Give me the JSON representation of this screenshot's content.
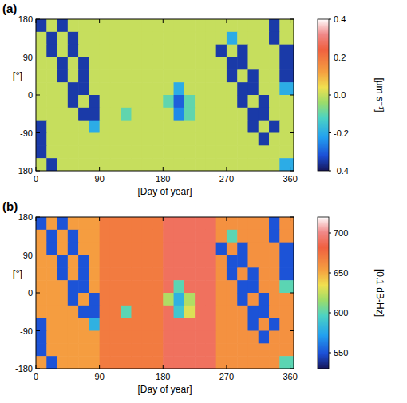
{
  "chart_data": [
    {
      "type": "heatmap",
      "title": "(a)",
      "x_label": "[Day of year]",
      "y_label": "[°]",
      "xlim": [
        0,
        365
      ],
      "ylim": [
        -180,
        180
      ],
      "xticks": [
        0,
        90,
        180,
        270,
        360
      ],
      "yticks": [
        -180,
        -90,
        0,
        90,
        180
      ],
      "x_edges": [
        0,
        15,
        30,
        45,
        60,
        75,
        90,
        105,
        120,
        135,
        150,
        165,
        180,
        195,
        210,
        225,
        240,
        255,
        270,
        285,
        300,
        315,
        330,
        345,
        365
      ],
      "y_edges": [
        180,
        150,
        120,
        90,
        60,
        30,
        0,
        -30,
        -60,
        -90,
        -120,
        -150,
        -180
      ],
      "cells": [
        [
          -0.35,
          0,
          -0.35,
          0,
          0,
          0,
          0,
          0,
          0,
          0,
          0,
          0,
          0,
          0,
          0,
          0,
          0,
          0,
          0,
          0,
          0,
          0,
          -0.35,
          0
        ],
        [
          0,
          -0.35,
          0,
          -0.35,
          0,
          0,
          0,
          0,
          0,
          0,
          0,
          0,
          0,
          0,
          0,
          0,
          0,
          0,
          -0.2,
          0,
          0,
          0,
          -0.35,
          0
        ],
        [
          0,
          -0.35,
          0,
          -0.35,
          0,
          0,
          0,
          0,
          0,
          0,
          0,
          0,
          0,
          0,
          0,
          0,
          0,
          -0.35,
          0,
          -0.35,
          0,
          0,
          0,
          -0.35
        ],
        [
          0,
          0,
          -0.35,
          0,
          -0.35,
          0,
          0,
          0,
          0,
          0,
          0,
          0,
          0,
          0,
          0,
          0,
          0,
          0,
          -0.35,
          -0.35,
          0,
          0,
          0,
          -0.35
        ],
        [
          0,
          0,
          -0.35,
          0,
          -0.35,
          0,
          0,
          0,
          0,
          0,
          0,
          0,
          0,
          0,
          0,
          0,
          0,
          0,
          -0.35,
          0,
          -0.35,
          0,
          0,
          -0.35
        ],
        [
          0,
          0,
          0,
          -0.35,
          -0.35,
          0,
          0,
          0,
          0,
          0,
          0,
          0,
          0,
          -0.2,
          0,
          0,
          0,
          0,
          0,
          -0.35,
          -0.35,
          0,
          0,
          -0.2
        ],
        [
          0,
          0,
          0,
          -0.35,
          0,
          -0.35,
          0,
          0,
          0,
          0,
          0,
          0,
          -0.1,
          -0.3,
          -0.1,
          0,
          0,
          0,
          0,
          -0.35,
          0,
          -0.35,
          0,
          0
        ],
        [
          0,
          0,
          0,
          0,
          -0.35,
          -0.35,
          0,
          0,
          -0.1,
          0,
          0,
          0,
          0,
          -0.25,
          -0.1,
          0,
          0,
          0,
          0,
          0,
          -0.35,
          -0.35,
          0,
          0
        ],
        [
          -0.35,
          0,
          0,
          0,
          0,
          -0.2,
          0,
          0,
          0,
          0,
          0,
          0,
          0,
          0,
          0,
          0,
          0,
          0,
          0,
          0,
          -0.35,
          0,
          -0.35,
          0
        ],
        [
          -0.35,
          0,
          0,
          0,
          0,
          0,
          0,
          0,
          0,
          0,
          0,
          0,
          0,
          0,
          0,
          0,
          0,
          0,
          0,
          0,
          0,
          -0.35,
          0,
          0
        ],
        [
          -0.35,
          0,
          0,
          0,
          0,
          0,
          0,
          0,
          0,
          0,
          0,
          0,
          0,
          0,
          0,
          0,
          0,
          0,
          0,
          0,
          0,
          0,
          0,
          0
        ],
        [
          0,
          -0.35,
          0,
          0,
          0,
          0,
          0,
          0,
          0,
          0,
          0,
          0,
          0,
          0,
          0,
          0,
          0,
          0,
          0,
          0,
          0,
          0,
          0,
          -0.2
        ]
      ],
      "colorbar_label": "[µm s⁻¹]",
      "colorbar_range": [
        -0.4,
        0.4
      ],
      "colorbar_ticks": [
        -0.4,
        -0.2,
        {
          "value": 0,
          "label": "0.0"
        },
        0.2,
        0.4
      ]
    },
    {
      "type": "heatmap",
      "title": "(b)",
      "x_label": "[Day of year]",
      "y_label": "[°]",
      "xlim": [
        0,
        365
      ],
      "ylim": [
        -180,
        180
      ],
      "xticks": [
        0,
        90,
        180,
        270,
        360
      ],
      "yticks": [
        -180,
        -90,
        0,
        90,
        180
      ],
      "x_edges": [
        0,
        15,
        30,
        45,
        60,
        75,
        90,
        105,
        120,
        135,
        150,
        165,
        180,
        195,
        210,
        225,
        240,
        255,
        270,
        285,
        300,
        315,
        330,
        345,
        365
      ],
      "y_edges": [
        180,
        150,
        120,
        90,
        60,
        30,
        0,
        -30,
        -60,
        -90,
        -120,
        -150,
        -180
      ],
      "cells": [
        [
          550,
          655,
          550,
          655,
          655,
          655,
          670,
          670,
          670,
          670,
          670,
          670,
          690,
          690,
          690,
          690,
          690,
          660,
          660,
          660,
          660,
          660,
          550,
          660
        ],
        [
          655,
          550,
          655,
          550,
          655,
          655,
          670,
          670,
          670,
          670,
          670,
          670,
          690,
          690,
          690,
          690,
          690,
          660,
          600,
          660,
          660,
          660,
          550,
          660
        ],
        [
          655,
          550,
          655,
          550,
          655,
          655,
          670,
          670,
          670,
          670,
          670,
          670,
          690,
          690,
          690,
          690,
          690,
          550,
          660,
          550,
          660,
          660,
          660,
          550
        ],
        [
          655,
          655,
          550,
          655,
          550,
          655,
          670,
          670,
          670,
          670,
          670,
          670,
          690,
          690,
          690,
          690,
          690,
          660,
          550,
          550,
          660,
          660,
          660,
          550
        ],
        [
          655,
          655,
          550,
          655,
          550,
          655,
          670,
          670,
          670,
          670,
          670,
          670,
          690,
          690,
          690,
          690,
          690,
          660,
          550,
          660,
          550,
          660,
          660,
          550
        ],
        [
          655,
          655,
          655,
          550,
          550,
          655,
          670,
          670,
          670,
          670,
          670,
          670,
          690,
          600,
          690,
          690,
          690,
          660,
          660,
          550,
          550,
          660,
          660,
          600
        ],
        [
          655,
          655,
          655,
          550,
          655,
          550,
          670,
          670,
          670,
          670,
          670,
          670,
          620,
          580,
          620,
          690,
          690,
          660,
          660,
          550,
          660,
          550,
          660,
          660
        ],
        [
          655,
          655,
          655,
          655,
          550,
          550,
          670,
          670,
          600,
          670,
          670,
          670,
          690,
          590,
          630,
          690,
          690,
          660,
          660,
          660,
          550,
          550,
          660,
          660
        ],
        [
          550,
          655,
          655,
          655,
          655,
          580,
          670,
          670,
          670,
          670,
          670,
          670,
          690,
          690,
          690,
          690,
          690,
          660,
          660,
          660,
          550,
          660,
          550,
          660
        ],
        [
          550,
          655,
          655,
          655,
          655,
          655,
          670,
          670,
          670,
          670,
          670,
          670,
          690,
          690,
          690,
          690,
          690,
          660,
          660,
          660,
          660,
          550,
          660,
          660
        ],
        [
          550,
          655,
          655,
          655,
          655,
          655,
          670,
          670,
          670,
          670,
          670,
          670,
          690,
          690,
          690,
          690,
          690,
          660,
          660,
          660,
          660,
          660,
          660,
          660
        ],
        [
          655,
          550,
          655,
          655,
          655,
          655,
          670,
          670,
          670,
          670,
          670,
          670,
          690,
          690,
          690,
          690,
          690,
          660,
          660,
          660,
          660,
          660,
          660,
          600
        ]
      ],
      "colorbar_label": "[0.1 dB-Hz]",
      "colorbar_range": [
        530,
        720
      ],
      "colorbar_ticks": [
        550,
        600,
        650,
        700
      ]
    }
  ]
}
